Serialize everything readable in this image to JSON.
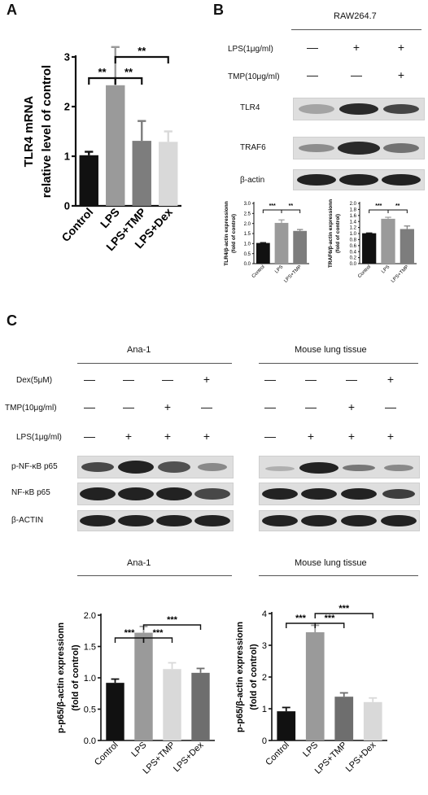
{
  "panels": {
    "a": "A",
    "b": "B",
    "c": "C"
  },
  "panel_b": {
    "cell_line": "RAW264.7",
    "treatments": [
      {
        "label": "LPS(1μg/ml)",
        "signs": [
          "—",
          "+",
          "+"
        ]
      },
      {
        "label": "TMP(10μg/ml)",
        "signs": [
          "—",
          "—",
          "+"
        ]
      }
    ],
    "blots": [
      "TLR4",
      "TRAF6",
      "β-actin"
    ]
  },
  "panel_c": {
    "groups": [
      {
        "title": "Ana-1"
      },
      {
        "title": "Mouse lung tissue"
      }
    ],
    "treatments": [
      {
        "label": "Dex(5μM)",
        "signs": [
          "—",
          "—",
          "—",
          "+"
        ]
      },
      {
        "label": "TMP(10μg/ml)",
        "signs": [
          "—",
          "—",
          "+",
          "—"
        ]
      },
      {
        "label": "LPS(1μg/ml)",
        "signs": [
          "—",
          "+",
          "+",
          "+"
        ]
      }
    ],
    "blots": [
      "p-NF-κB p65",
      "NF-κB p65",
      "β-ACTIN"
    ],
    "chart_titles": [
      "Ana-1",
      "Mouse lung tissue"
    ]
  },
  "chart_data": [
    {
      "id": "A",
      "type": "bar",
      "categories": [
        "Control",
        "LPS",
        "LPS+TMP",
        "LPS+Dex"
      ],
      "values": [
        1.02,
        2.43,
        1.31,
        1.29
      ],
      "errors": [
        0.07,
        0.77,
        0.4,
        0.21
      ],
      "colors": [
        "#111111",
        "#9a9a9a",
        "#7d7d7d",
        "#d9d9d9"
      ],
      "ylabel": [
        "TLR4 mRNA",
        "relative level of control"
      ],
      "ylim": [
        0,
        3
      ],
      "yticks": [
        "0",
        "1",
        "2",
        "3"
      ],
      "brackets": [
        {
          "from": 0,
          "to": 1,
          "label": "**",
          "level": 0
        },
        {
          "from": 1,
          "to": 2,
          "label": "**",
          "level": 0
        },
        {
          "from": 1,
          "to": 3,
          "label": "**",
          "level": 1
        }
      ]
    },
    {
      "id": "B-TLR4",
      "type": "bar",
      "categories": [
        "Control",
        "LPS",
        "LPS+TMP"
      ],
      "values": [
        1.03,
        2.03,
        1.63
      ],
      "errors": [
        0.02,
        0.15,
        0.07
      ],
      "colors": [
        "#111111",
        "#9a9a9a",
        "#7d7d7d"
      ],
      "ylabel": [
        "TLR4/β-actin expressionn",
        "(fold of control)"
      ],
      "ylim": [
        0,
        3
      ],
      "yticks": [
        "0.0",
        "0.5",
        "1.0",
        "1.5",
        "2.0",
        "2.5",
        "3.0"
      ],
      "brackets": [
        {
          "from": 0,
          "to": 1,
          "label": "***",
          "level": 0
        },
        {
          "from": 1,
          "to": 2,
          "label": "**",
          "level": 0
        }
      ]
    },
    {
      "id": "B-TRAF6",
      "type": "bar",
      "categories": [
        "Control",
        "LPS",
        "LPS+TMP"
      ],
      "values": [
        1.01,
        1.49,
        1.15
      ],
      "errors": [
        0.01,
        0.05,
        0.1
      ],
      "colors": [
        "#111111",
        "#9a9a9a",
        "#7d7d7d"
      ],
      "ylabel": [
        "TRAF6/β-actin expressionn",
        "(fold of control)"
      ],
      "ylim": [
        0,
        2
      ],
      "yticks": [
        "0.0",
        "0.2",
        "0.4",
        "0.6",
        "0.8",
        "1.0",
        "1.2",
        "1.4",
        "1.6",
        "1.8",
        "2.0"
      ],
      "brackets": [
        {
          "from": 0,
          "to": 1,
          "label": "***",
          "level": 0
        },
        {
          "from": 1,
          "to": 2,
          "label": "**",
          "level": 0
        }
      ]
    },
    {
      "id": "C-Ana-1",
      "type": "bar",
      "categories": [
        "Control",
        "LPS",
        "LPS+TMP",
        "LPS+Dex"
      ],
      "values": [
        0.92,
        1.72,
        1.14,
        1.08
      ],
      "errors": [
        0.06,
        0.1,
        0.1,
        0.07
      ],
      "colors": [
        "#111111",
        "#9a9a9a",
        "#d9d9d9",
        "#6e6e6e"
      ],
      "ylabel": [
        "p-p65/β-actin expressionn",
        "(fold of control)"
      ],
      "ylim": [
        0,
        2
      ],
      "yticks": [
        "0.0",
        "0.5",
        "1.0",
        "1.5",
        "2.0"
      ],
      "brackets": [
        {
          "from": 0,
          "to": 1,
          "label": "***",
          "level": 0
        },
        {
          "from": 1,
          "to": 2,
          "label": "***",
          "level": 0
        },
        {
          "from": 1,
          "to": 3,
          "label": "***",
          "level": 1
        }
      ]
    },
    {
      "id": "C-Mouse",
      "type": "bar",
      "categories": [
        "Control",
        "LPS",
        "LPS+TMP",
        "LPS+Dex"
      ],
      "values": [
        0.92,
        3.41,
        1.38,
        1.21
      ],
      "errors": [
        0.12,
        0.22,
        0.12,
        0.13
      ],
      "colors": [
        "#111111",
        "#9a9a9a",
        "#6e6e6e",
        "#d9d9d9"
      ],
      "ylabel": [
        "p-p65/β-actin expressionn",
        "(fold of control)"
      ],
      "ylim": [
        0,
        4
      ],
      "yticks": [
        "0",
        "1",
        "2",
        "3",
        "4"
      ],
      "brackets": [
        {
          "from": 0,
          "to": 1,
          "label": "***",
          "level": 0
        },
        {
          "from": 1,
          "to": 2,
          "label": "***",
          "level": 0
        },
        {
          "from": 1,
          "to": 3,
          "label": "***",
          "level": 1
        }
      ]
    }
  ]
}
